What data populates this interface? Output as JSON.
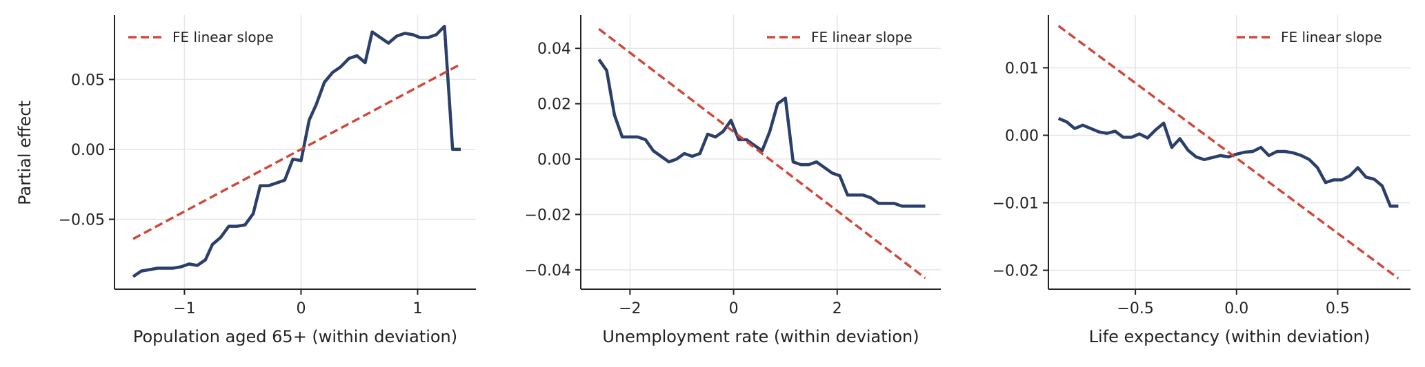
{
  "figure": {
    "shared_ylabel": "Partial effect"
  },
  "colors": {
    "curve": "#2b3f6b",
    "fe_line": "#d0483a",
    "grid": "#e6e6e6",
    "axis": "#222222"
  },
  "chart_data": [
    {
      "type": "line",
      "xlabel": "Population aged 65+ (within deviation)",
      "ylabel": "Partial effect",
      "xlim": [
        -1.6,
        1.5
      ],
      "ylim": [
        -0.1,
        0.096
      ],
      "xticks": [
        -1,
        0,
        1
      ],
      "xtick_labels": [
        "−1",
        "0",
        "1"
      ],
      "yticks": [
        -0.05,
        0.0,
        0.05
      ],
      "ytick_labels": [
        "−0.05",
        "0.00",
        "0.05"
      ],
      "grid": true,
      "legend": {
        "placement": "upper left",
        "entries": [
          "FE linear slope"
        ]
      },
      "series": [
        {
          "name": "",
          "style": "solid",
          "x": [
            -1.44,
            -1.37,
            -1.3,
            -1.23,
            -1.16,
            -1.1,
            -1.03,
            -0.96,
            -0.89,
            -0.82,
            -0.76,
            -0.69,
            -0.62,
            -0.55,
            -0.48,
            -0.41,
            -0.35,
            -0.28,
            -0.21,
            -0.14,
            -0.07,
            0.0,
            0.07,
            0.13,
            0.2,
            0.27,
            0.34,
            0.41,
            0.48,
            0.55,
            0.61,
            0.68,
            0.75,
            0.82,
            0.89,
            0.96,
            1.02,
            1.09,
            1.16,
            1.23,
            1.3,
            1.37
          ],
          "y": [
            -0.091,
            -0.087,
            -0.086,
            -0.085,
            -0.085,
            -0.085,
            -0.084,
            -0.082,
            -0.083,
            -0.079,
            -0.068,
            -0.063,
            -0.055,
            -0.055,
            -0.054,
            -0.046,
            -0.026,
            -0.026,
            -0.024,
            -0.022,
            -0.007,
            -0.008,
            0.021,
            0.032,
            0.048,
            0.055,
            0.059,
            0.065,
            0.067,
            0.062,
            0.084,
            0.08,
            0.076,
            0.081,
            0.083,
            0.082,
            0.08,
            0.08,
            0.082,
            0.088,
            0.0,
            0.0
          ]
        },
        {
          "name": "FE linear slope",
          "style": "dashed",
          "x": [
            -1.44,
            1.37
          ],
          "y": [
            -0.064,
            0.061
          ]
        }
      ]
    },
    {
      "type": "line",
      "xlabel": "Unemployment rate (within deviation)",
      "ylabel": "",
      "xlim": [
        -2.95,
        4.0
      ],
      "ylim": [
        -0.047,
        0.052
      ],
      "xticks": [
        -2,
        0,
        2
      ],
      "xtick_labels": [
        "−2",
        "0",
        "2"
      ],
      "yticks": [
        -0.04,
        -0.02,
        0.0,
        0.02,
        0.04
      ],
      "ytick_labels": [
        "−0.04",
        "−0.02",
        "0.00",
        "0.02",
        "0.04"
      ],
      "grid": true,
      "legend": {
        "placement": "upper right",
        "entries": [
          "FE linear slope"
        ]
      },
      "series": [
        {
          "name": "",
          "style": "solid",
          "x": [
            -2.6,
            -2.45,
            -2.3,
            -2.15,
            -2.0,
            -1.85,
            -1.7,
            -1.55,
            -1.4,
            -1.25,
            -1.1,
            -0.95,
            -0.8,
            -0.65,
            -0.5,
            -0.35,
            -0.2,
            -0.05,
            0.1,
            0.25,
            0.4,
            0.55,
            0.7,
            0.85,
            1.0,
            1.15,
            1.3,
            1.45,
            1.6,
            1.75,
            1.9,
            2.05,
            2.2,
            2.35,
            2.5,
            2.65,
            2.8,
            2.95,
            3.1,
            3.25,
            3.4,
            3.55,
            3.7
          ],
          "y": [
            0.036,
            0.032,
            0.016,
            0.008,
            0.008,
            0.008,
            0.007,
            0.003,
            0.001,
            -0.001,
            0.0,
            0.002,
            0.001,
            0.002,
            0.009,
            0.008,
            0.01,
            0.014,
            0.007,
            0.007,
            0.005,
            0.003,
            0.01,
            0.02,
            0.022,
            -0.001,
            -0.002,
            -0.002,
            -0.001,
            -0.003,
            -0.005,
            -0.006,
            -0.013,
            -0.013,
            -0.013,
            -0.014,
            -0.016,
            -0.016,
            -0.016,
            -0.017,
            -0.017,
            -0.017,
            -0.017
          ]
        },
        {
          "name": "FE linear slope",
          "style": "dashed",
          "x": [
            -2.6,
            3.7
          ],
          "y": [
            0.047,
            -0.043
          ]
        }
      ]
    },
    {
      "type": "line",
      "xlabel": "Life expectancy (within deviation)",
      "ylabel": "",
      "xlim": [
        -0.93,
        0.86
      ],
      "ylim": [
        -0.0228,
        0.0178
      ],
      "xticks": [
        -0.5,
        0.0,
        0.5
      ],
      "xtick_labels": [
        "−0.5",
        "0.0",
        "0.5"
      ],
      "yticks": [
        -0.02,
        -0.01,
        0.0,
        0.01
      ],
      "ytick_labels": [
        "−0.02",
        "−0.01",
        "0.00",
        "0.01"
      ],
      "grid": true,
      "legend": {
        "placement": "upper right",
        "entries": [
          "FE linear slope"
        ]
      },
      "series": [
        {
          "name": "",
          "style": "solid",
          "x": [
            -0.88,
            -0.84,
            -0.8,
            -0.76,
            -0.72,
            -0.68,
            -0.64,
            -0.6,
            -0.56,
            -0.52,
            -0.48,
            -0.44,
            -0.4,
            -0.36,
            -0.32,
            -0.28,
            -0.24,
            -0.2,
            -0.16,
            -0.12,
            -0.08,
            -0.04,
            0.0,
            0.04,
            0.08,
            0.12,
            0.16,
            0.2,
            0.24,
            0.28,
            0.32,
            0.36,
            0.4,
            0.44,
            0.48,
            0.52,
            0.56,
            0.6,
            0.64,
            0.68,
            0.72,
            0.76,
            0.8
          ],
          "y": [
            0.0025,
            0.002,
            0.001,
            0.0015,
            0.001,
            0.0005,
            0.0003,
            0.0006,
            -0.0003,
            -0.0003,
            0.0002,
            -0.0004,
            0.0008,
            0.0018,
            -0.0018,
            -0.0005,
            -0.0022,
            -0.0032,
            -0.0036,
            -0.0033,
            -0.003,
            -0.0032,
            -0.0028,
            -0.0025,
            -0.0024,
            -0.0018,
            -0.003,
            -0.0024,
            -0.0024,
            -0.0026,
            -0.003,
            -0.0036,
            -0.0048,
            -0.007,
            -0.0066,
            -0.0066,
            -0.006,
            -0.0048,
            -0.0062,
            -0.0065,
            -0.0075,
            -0.0105,
            -0.0105
          ]
        },
        {
          "name": "FE linear slope",
          "style": "dashed",
          "x": [
            -0.88,
            0.8
          ],
          "y": [
            0.0162,
            -0.0212
          ]
        }
      ]
    }
  ]
}
